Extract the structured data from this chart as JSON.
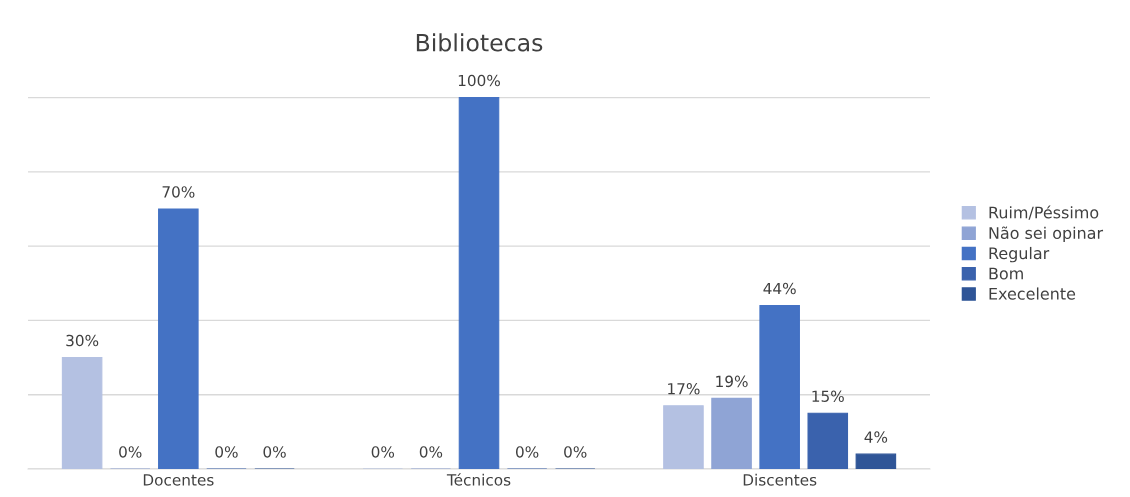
{
  "chart_data": {
    "type": "bar",
    "title": "Bibliotecas",
    "categories": [
      "Docentes",
      "Técnicos",
      "Discentes"
    ],
    "series": [
      {
        "name": "Ruim/Péssimo",
        "color": "#b4c1e2",
        "values": [
          30,
          0,
          17
        ],
        "value_labels": [
          "30%",
          "0%",
          "17%"
        ]
      },
      {
        "name": "Não sei opinar",
        "color": "#8fa4d5",
        "values": [
          0,
          0,
          19
        ],
        "value_labels": [
          "0%",
          "0%",
          "19%"
        ]
      },
      {
        "name": "Regular",
        "color": "#4472c4",
        "values": [
          70,
          100,
          44
        ],
        "value_labels": [
          "70%",
          "100%",
          "44%"
        ]
      },
      {
        "name": "Bom",
        "color": "#3a62ad",
        "values": [
          0,
          0,
          15
        ],
        "value_labels": [
          "0%",
          "0%",
          "15%"
        ]
      },
      {
        "name": "Execelente",
        "color": "#2f5597",
        "values": [
          0,
          0,
          4
        ],
        "value_labels": [
          "0%",
          "0%",
          "4%"
        ]
      }
    ],
    "tick_labels": "x",
    "grid": "y",
    "legend": "right"
  }
}
